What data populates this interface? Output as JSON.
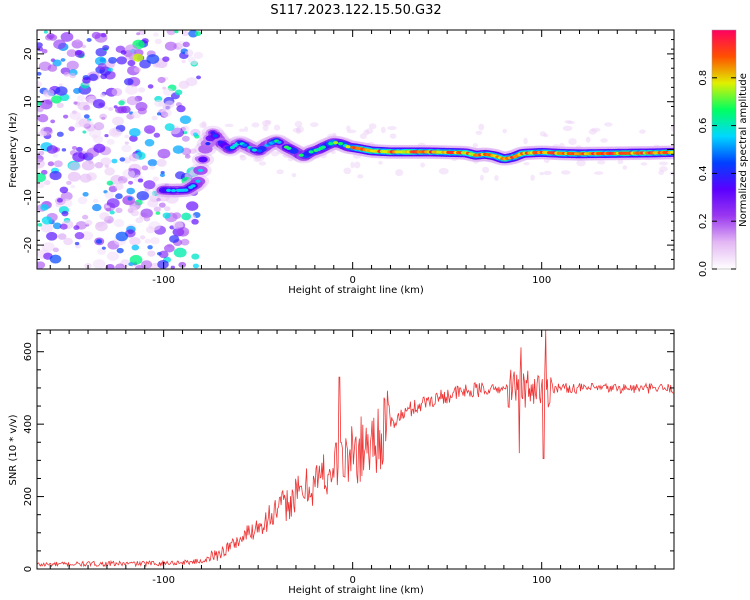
{
  "title": "S117.2023.122.15.50.G32",
  "chart_data": [
    {
      "type": "heatmap",
      "xlabel": "Height of straight line (km)",
      "ylabel": "Frequency (Hz)",
      "xlim": [
        -167,
        170
      ],
      "ylim": [
        -25,
        25
      ],
      "x_ticks": [
        -100,
        0,
        100
      ],
      "y_ticks": [
        -20,
        -10,
        0,
        10,
        20
      ],
      "colorbar": {
        "label": "Normalized spectral amplitude",
        "range": [
          0,
          1
        ],
        "ticks": [
          0.0,
          0.2,
          0.4,
          0.6,
          0.8
        ],
        "colormap": [
          "#ffffff",
          "#e4b8f4",
          "#9a38f0",
          "#5a00ff",
          "#0040ff",
          "#00d8ff",
          "#00ff60",
          "#e0f000",
          "#ff5000",
          "#ff0060"
        ]
      },
      "ridge": {
        "x": [
          -100,
          -95,
          -88,
          -82,
          -78,
          -74,
          -70,
          -65,
          -60,
          -55,
          -50,
          -45,
          -40,
          -35,
          -30,
          -26,
          -22,
          -18,
          -14,
          -10,
          -6,
          -2,
          2,
          6,
          10,
          20,
          40,
          60,
          65,
          70,
          75,
          80,
          85,
          90,
          95,
          100,
          110,
          120,
          140,
          160,
          170
        ],
        "y": [
          -8.5,
          -8.6,
          -8.5,
          -7.0,
          0.0,
          3.5,
          1.5,
          0.0,
          1.5,
          0.5,
          -0.5,
          1.0,
          1.8,
          0.5,
          -0.5,
          -1.5,
          -0.5,
          0.0,
          0.8,
          1.5,
          1.2,
          0.5,
          0.3,
          0.0,
          -0.3,
          -0.5,
          -0.5,
          -0.7,
          -1.2,
          -1.0,
          -1.3,
          -2.0,
          -1.6,
          -0.8,
          -0.7,
          -0.6,
          -0.8,
          -0.9,
          -0.8,
          -0.7,
          -0.6
        ]
      }
    },
    {
      "type": "line",
      "xlabel": "Height of straight line (km)",
      "ylabel": "SNR (10 * v/v)",
      "xlim": [
        -167,
        170
      ],
      "ylim": [
        0,
        660
      ],
      "x_ticks": [
        -100,
        0,
        100
      ],
      "y_ticks": [
        0,
        200,
        400,
        600
      ],
      "color": "#ee3333",
      "series": [
        {
          "x": [
            -167,
            -140,
            -110,
            -90,
            -80,
            -75,
            -70,
            -60,
            -50,
            -40,
            -30,
            -20,
            -10,
            0,
            10,
            20,
            30,
            40,
            50,
            60,
            70,
            80,
            90,
            100,
            110,
            120,
            140,
            170
          ],
          "values": [
            12,
            14,
            15,
            18,
            22,
            30,
            45,
            80,
            120,
            160,
            200,
            240,
            280,
            315,
            350,
            400,
            440,
            465,
            480,
            490,
            495,
            498,
            500,
            500,
            500,
            499,
            499,
            498
          ]
        }
      ],
      "spikes": [
        {
          "x": -7,
          "value": 530
        },
        {
          "x": 89,
          "value": 612
        },
        {
          "x": 102,
          "value": 660
        },
        {
          "x": 88,
          "value": 320
        },
        {
          "x": 101,
          "value": 305
        }
      ]
    }
  ]
}
